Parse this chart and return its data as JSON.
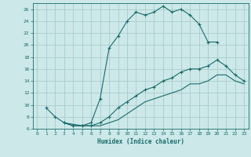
{
  "title": "",
  "xlabel": "Humidex (Indice chaleur)",
  "bg_color": "#cce8e8",
  "grid_color": "#aacccc",
  "line_color": "#1a6b6b",
  "xlim": [
    -0.5,
    23.5
  ],
  "ylim": [
    6,
    27
  ],
  "xticks": [
    0,
    1,
    2,
    3,
    4,
    5,
    6,
    7,
    8,
    9,
    10,
    11,
    12,
    13,
    14,
    15,
    16,
    17,
    18,
    19,
    20,
    21,
    22,
    23
  ],
  "yticks": [
    6,
    8,
    10,
    12,
    14,
    16,
    18,
    20,
    22,
    24,
    26
  ],
  "line1_x": [
    1,
    2,
    3,
    4,
    5,
    6,
    7,
    8,
    9,
    10,
    11,
    12,
    13,
    14,
    15,
    16,
    17,
    18,
    19,
    20
  ],
  "line1_y": [
    9.5,
    8,
    7,
    6.5,
    6.5,
    7,
    11,
    19.5,
    21.5,
    24,
    25.5,
    25,
    25.5,
    26.5,
    25.5,
    26,
    25,
    23.5,
    20.5,
    20.5
  ],
  "line2_x": [
    3,
    4,
    5,
    6,
    7,
    8,
    9,
    10,
    11,
    12,
    13,
    14,
    15,
    16,
    17,
    18,
    19,
    20,
    21,
    22,
    23
  ],
  "line2_y": [
    7,
    6.5,
    6.5,
    6.5,
    7,
    8,
    9.5,
    10.5,
    11.5,
    12.5,
    13,
    14,
    14.5,
    15.5,
    16,
    16,
    16.5,
    17.5,
    16.5,
    15,
    14
  ],
  "line3_x": [
    3,
    5,
    6,
    7,
    8,
    9,
    10,
    11,
    12,
    13,
    14,
    15,
    16,
    17,
    18,
    19,
    20,
    21,
    22,
    23
  ],
  "line3_y": [
    7,
    6.5,
    6.5,
    6.5,
    7,
    7.5,
    8.5,
    9.5,
    10.5,
    11,
    11.5,
    12,
    12.5,
    13.5,
    13.5,
    14,
    15,
    15,
    14,
    13.5
  ]
}
